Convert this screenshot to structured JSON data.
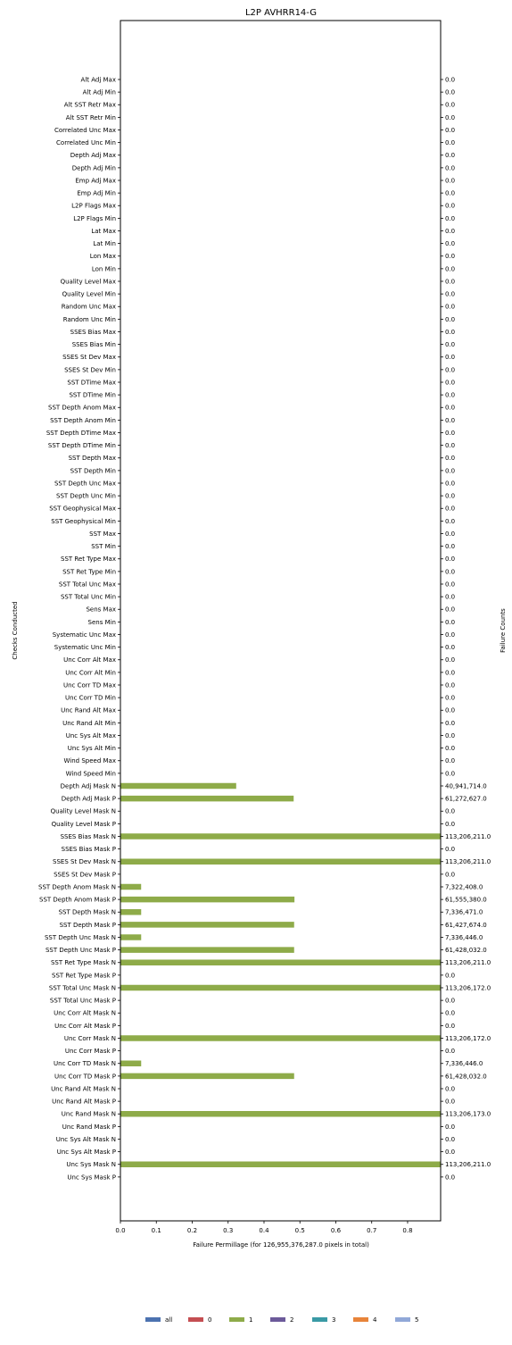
{
  "chart_data": {
    "type": "bar",
    "orientation": "horizontal",
    "title": "L2P AVHRR14-G",
    "xlabel": "Failure Permillage (for 126,955,376,287.0 pixels in total)",
    "ylabel": "Checks Conducted",
    "ylabel_right": "Failure Counts",
    "xlim": [
      0,
      0.892
    ],
    "xticks": [
      "0.0",
      "0.1",
      "0.2",
      "0.3",
      "0.4",
      "0.5",
      "0.6",
      "0.7",
      "0.8"
    ],
    "grid": false,
    "legend_position": "bottom-center",
    "legend": [
      {
        "label": "all",
        "color": "#4c72b0"
      },
      {
        "label": "0",
        "color": "#c44e52"
      },
      {
        "label": "1",
        "color": "#8eab49"
      },
      {
        "label": "2",
        "color": "#6c5a9a"
      },
      {
        "label": "3",
        "color": "#3a9aa5"
      },
      {
        "label": "4",
        "color": "#e8843a"
      },
      {
        "label": "5",
        "color": "#91a8d8"
      }
    ],
    "series": [
      {
        "name": "1",
        "color": "#8eab49"
      }
    ],
    "categories": [
      "Alt Adj Max",
      "Alt Adj Min",
      "Alt SST Retr Max",
      "Alt SST Retr Min",
      "Correlated Unc Max",
      "Correlated Unc Min",
      "Depth Adj Max",
      "Depth Adj Min",
      "Emp Adj Max",
      "Emp Adj Min",
      "L2P Flags Max",
      "L2P Flags Min",
      "Lat Max",
      "Lat Min",
      "Lon Max",
      "Lon Min",
      "Quality Level Max",
      "Quality Level Min",
      "Random Unc Max",
      "Random Unc Min",
      "SSES Bias Max",
      "SSES Bias Min",
      "SSES St Dev Max",
      "SSES St Dev Min",
      "SST DTime Max",
      "SST DTime Min",
      "SST Depth Anom Max",
      "SST Depth Anom Min",
      "SST Depth DTime Max",
      "SST Depth DTime Min",
      "SST Depth Max",
      "SST Depth Min",
      "SST Depth Unc Max",
      "SST Depth Unc Min",
      "SST Geophysical Max",
      "SST Geophysical Min",
      "SST Max",
      "SST Min",
      "SST Ret Type Max",
      "SST Ret Type Min",
      "SST Total Unc Max",
      "SST Total Unc Min",
      "Sens Max",
      "Sens Min",
      "Systematic Unc Max",
      "Systematic Unc Min",
      "Unc Corr Alt Max",
      "Unc Corr Alt Min",
      "Unc Corr TD Max",
      "Unc Corr TD Min",
      "Unc Rand Alt Max",
      "Unc Rand Alt Min",
      "Unc Sys Alt Max",
      "Unc Sys Alt Min",
      "Wind Speed Max",
      "Wind Speed Min",
      "Depth Adj Mask N",
      "Depth Adj Mask P",
      "Quality Level Mask N",
      "Quality Level Mask P",
      "SSES Bias Mask N",
      "SSES Bias Mask P",
      "SSES St Dev Mask N",
      "SSES St Dev Mask P",
      "SST Depth Anom Mask N",
      "SST Depth Anom Mask P",
      "SST Depth Mask N",
      "SST Depth Mask P",
      "SST Depth Unc Mask N",
      "SST Depth Unc Mask P",
      "SST Ret Type Mask N",
      "SST Ret Type Mask P",
      "SST Total Unc Mask N",
      "SST Total Unc Mask P",
      "Unc Corr Alt Mask N",
      "Unc Corr Alt Mask P",
      "Unc Corr Mask N",
      "Unc Corr Mask P",
      "Unc Corr TD Mask N",
      "Unc Corr TD Mask P",
      "Unc Rand Alt Mask N",
      "Unc Rand Alt Mask P",
      "Unc Rand Mask N",
      "Unc Rand Mask P",
      "Unc Sys Alt Mask N",
      "Unc Sys Alt Mask P",
      "Unc Sys Mask N",
      "Unc Sys Mask P"
    ],
    "values": [
      0,
      0,
      0,
      0,
      0,
      0,
      0,
      0,
      0,
      0,
      0,
      0,
      0,
      0,
      0,
      0,
      0,
      0,
      0,
      0,
      0,
      0,
      0,
      0,
      0,
      0,
      0,
      0,
      0,
      0,
      0,
      0,
      0,
      0,
      0,
      0,
      0,
      0,
      0,
      0,
      0,
      0,
      0,
      0,
      0,
      0,
      0,
      0,
      0,
      0,
      0,
      0,
      0,
      0,
      0,
      0,
      0.3225,
      0.4826,
      0,
      0,
      0.892,
      0,
      0.892,
      0,
      0.0577,
      0.4848,
      0.0578,
      0.4839,
      0.0578,
      0.4839,
      0.892,
      0,
      0.892,
      0,
      0,
      0,
      0.892,
      0,
      0.0578,
      0.4839,
      0,
      0,
      0.892,
      0,
      0,
      0,
      0.892,
      0
    ],
    "counts": [
      "0.0",
      "0.0",
      "0.0",
      "0.0",
      "0.0",
      "0.0",
      "0.0",
      "0.0",
      "0.0",
      "0.0",
      "0.0",
      "0.0",
      "0.0",
      "0.0",
      "0.0",
      "0.0",
      "0.0",
      "0.0",
      "0.0",
      "0.0",
      "0.0",
      "0.0",
      "0.0",
      "0.0",
      "0.0",
      "0.0",
      "0.0",
      "0.0",
      "0.0",
      "0.0",
      "0.0",
      "0.0",
      "0.0",
      "0.0",
      "0.0",
      "0.0",
      "0.0",
      "0.0",
      "0.0",
      "0.0",
      "0.0",
      "0.0",
      "0.0",
      "0.0",
      "0.0",
      "0.0",
      "0.0",
      "0.0",
      "0.0",
      "0.0",
      "0.0",
      "0.0",
      "0.0",
      "0.0",
      "0.0",
      "0.0",
      "40,941,714.0",
      "61,272,627.0",
      "0.0",
      "0.0",
      "113,206,211.0",
      "0.0",
      "113,206,211.0",
      "0.0",
      "7,322,408.0",
      "61,555,380.0",
      "7,336,471.0",
      "61,427,674.0",
      "7,336,446.0",
      "61,428,032.0",
      "113,206,211.0",
      "0.0",
      "113,206,172.0",
      "0.0",
      "0.0",
      "0.0",
      "113,206,172.0",
      "0.0",
      "7,336,446.0",
      "61,428,032.0",
      "0.0",
      "0.0",
      "113,206,173.0",
      "0.0",
      "0.0",
      "0.0",
      "113,206,211.0",
      "0.0"
    ]
  }
}
